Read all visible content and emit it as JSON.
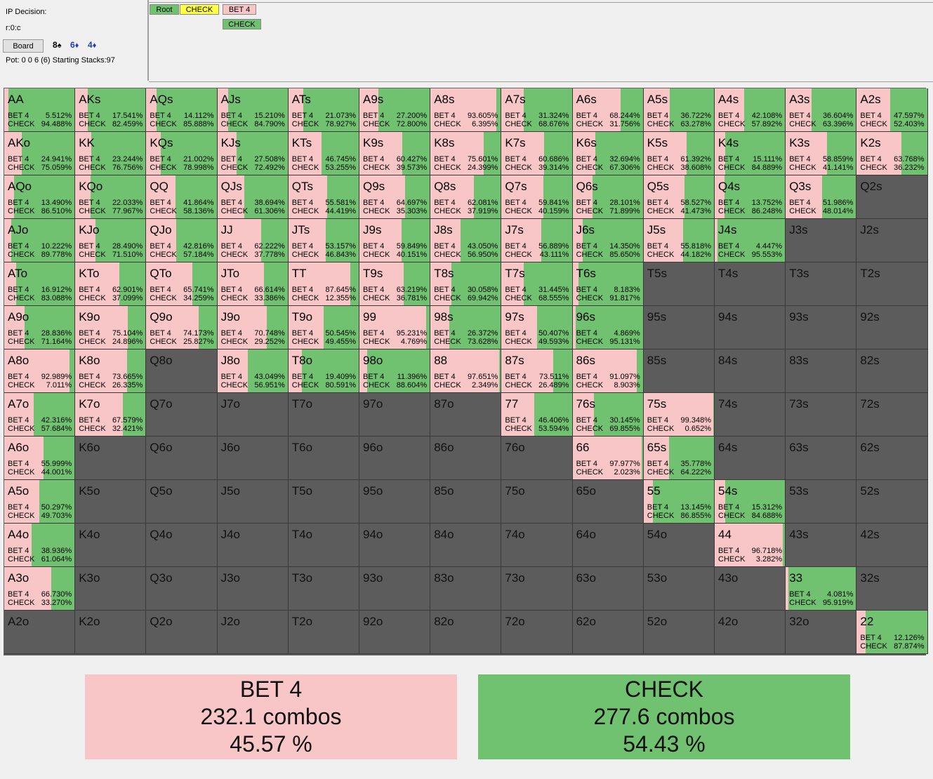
{
  "left_panel": {
    "decision": "IP Decision:",
    "line": "r:0:c",
    "board_button": "Board",
    "board_cards": [
      {
        "rank": "8",
        "suit": "♠",
        "color": "#000000"
      },
      {
        "rank": "6",
        "suit": "♦",
        "color": "#1f3fbf"
      },
      {
        "rank": "4",
        "suit": "♦",
        "color": "#1f3fbf"
      }
    ],
    "pot": "Pot: 0 0 6 (6) Starting Stacks:97"
  },
  "tree": {
    "nodes": [
      {
        "label": "Root",
        "color": "#71c270"
      },
      {
        "label": "CHECK",
        "color": "#ffff40"
      },
      {
        "label": "BET 4",
        "color": "#f8c6c6"
      },
      {
        "label": "CHECK",
        "color": "#71c270"
      }
    ]
  },
  "labels": {
    "bet": "BET 4",
    "check": "CHECK"
  },
  "colors": {
    "bet": "#f8c6c6",
    "check": "#71c270",
    "empty": "#5c5c5c"
  },
  "grid": [
    [
      [
        "AA",
        "5.512%",
        "94.488%"
      ],
      [
        "AKs",
        "17.541%",
        "82.459%"
      ],
      [
        "AQs",
        "14.112%",
        "85.888%"
      ],
      [
        "AJs",
        "15.210%",
        "84.790%"
      ],
      [
        "ATs",
        "21.073%",
        "78.927%"
      ],
      [
        "A9s",
        "27.200%",
        "72.800%"
      ],
      [
        "A8s",
        "93.605%",
        "6.395%"
      ],
      [
        "A7s",
        "31.324%",
        "68.676%"
      ],
      [
        "A6s",
        "68.244%",
        "31.756%"
      ],
      [
        "A5s",
        "36.722%",
        "63.278%"
      ],
      [
        "A4s",
        "42.108%",
        "57.892%"
      ],
      [
        "A3s",
        "36.604%",
        "63.396%"
      ],
      [
        "A2s",
        "47.597%",
        "52.403%"
      ]
    ],
    [
      [
        "AKo",
        "24.941%",
        "75.059%"
      ],
      [
        "KK",
        "23.244%",
        "76.756%"
      ],
      [
        "KQs",
        "21.002%",
        "78.998%"
      ],
      [
        "KJs",
        "27.508%",
        "72.492%"
      ],
      [
        "KTs",
        "46.745%",
        "53.255%"
      ],
      [
        "K9s",
        "60.427%",
        "39.573%"
      ],
      [
        "K8s",
        "75.601%",
        "24.399%"
      ],
      [
        "K7s",
        "60.686%",
        "39.314%"
      ],
      [
        "K6s",
        "32.694%",
        "67.306%"
      ],
      [
        "K5s",
        "61.392%",
        "38.608%"
      ],
      [
        "K4s",
        "15.111%",
        "84.889%"
      ],
      [
        "K3s",
        "58.859%",
        "41.141%"
      ],
      [
        "K2s",
        "63.768%",
        "36.232%"
      ]
    ],
    [
      [
        "AQo",
        "13.490%",
        "86.510%"
      ],
      [
        "KQo",
        "22.033%",
        "77.967%"
      ],
      [
        "QQ",
        "41.864%",
        "58.136%"
      ],
      [
        "QJs",
        "38.694%",
        "61.306%"
      ],
      [
        "QTs",
        "55.581%",
        "44.419%"
      ],
      [
        "Q9s",
        "64.697%",
        "35.303%"
      ],
      [
        "Q8s",
        "62.081%",
        "37.919%"
      ],
      [
        "Q7s",
        "59.841%",
        "40.159%"
      ],
      [
        "Q6s",
        "28.101%",
        "71.899%"
      ],
      [
        "Q5s",
        "58.527%",
        "41.473%"
      ],
      [
        "Q4s",
        "13.752%",
        "86.248%"
      ],
      [
        "Q3s",
        "51.986%",
        "48.014%"
      ],
      [
        "Q2s",
        "",
        ""
      ]
    ],
    [
      [
        "AJo",
        "10.222%",
        "89.778%"
      ],
      [
        "KJo",
        "28.490%",
        "71.510%"
      ],
      [
        "QJo",
        "42.816%",
        "57.184%"
      ],
      [
        "JJ",
        "62.222%",
        "37.778%"
      ],
      [
        "JTs",
        "53.157%",
        "46.843%"
      ],
      [
        "J9s",
        "59.849%",
        "40.151%"
      ],
      [
        "J8s",
        "43.050%",
        "56.950%"
      ],
      [
        "J7s",
        "56.889%",
        "43.111%"
      ],
      [
        "J6s",
        "14.350%",
        "85.650%"
      ],
      [
        "J5s",
        "55.818%",
        "44.182%"
      ],
      [
        "J4s",
        "4.447%",
        "95.553%"
      ],
      [
        "J3s",
        "",
        ""
      ],
      [
        "J2s",
        "",
        ""
      ]
    ],
    [
      [
        "ATo",
        "16.912%",
        "83.088%"
      ],
      [
        "KTo",
        "62.901%",
        "37.099%"
      ],
      [
        "QTo",
        "65.741%",
        "34.259%"
      ],
      [
        "JTo",
        "66.614%",
        "33.386%"
      ],
      [
        "TT",
        "87.645%",
        "12.355%"
      ],
      [
        "T9s",
        "63.219%",
        "36.781%"
      ],
      [
        "T8s",
        "30.058%",
        "69.942%"
      ],
      [
        "T7s",
        "31.445%",
        "68.555%"
      ],
      [
        "T6s",
        "8.183%",
        "91.817%"
      ],
      [
        "T5s",
        "",
        ""
      ],
      [
        "T4s",
        "",
        ""
      ],
      [
        "T3s",
        "",
        ""
      ],
      [
        "T2s",
        "",
        ""
      ]
    ],
    [
      [
        "A9o",
        "28.836%",
        "71.164%"
      ],
      [
        "K9o",
        "75.104%",
        "24.896%"
      ],
      [
        "Q9o",
        "74.173%",
        "25.827%"
      ],
      [
        "J9o",
        "70.748%",
        "29.252%"
      ],
      [
        "T9o",
        "50.545%",
        "49.455%"
      ],
      [
        "99",
        "95.231%",
        "4.769%"
      ],
      [
        "98s",
        "26.372%",
        "73.628%"
      ],
      [
        "97s",
        "50.407%",
        "49.593%"
      ],
      [
        "96s",
        "4.869%",
        "95.131%"
      ],
      [
        "95s",
        "",
        ""
      ],
      [
        "94s",
        "",
        ""
      ],
      [
        "93s",
        "",
        ""
      ],
      [
        "92s",
        "",
        ""
      ]
    ],
    [
      [
        "A8o",
        "92.989%",
        "7.011%"
      ],
      [
        "K8o",
        "73.665%",
        "26.335%"
      ],
      [
        "Q8o",
        "",
        ""
      ],
      [
        "J8o",
        "43.049%",
        "56.951%"
      ],
      [
        "T8o",
        "19.409%",
        "80.591%"
      ],
      [
        "98o",
        "11.396%",
        "88.604%"
      ],
      [
        "88",
        "97.651%",
        "2.349%"
      ],
      [
        "87s",
        "73.511%",
        "26.489%"
      ],
      [
        "86s",
        "91.097%",
        "8.903%"
      ],
      [
        "85s",
        "",
        ""
      ],
      [
        "84s",
        "",
        ""
      ],
      [
        "83s",
        "",
        ""
      ],
      [
        "82s",
        "",
        ""
      ]
    ],
    [
      [
        "A7o",
        "42.316%",
        "57.684%"
      ],
      [
        "K7o",
        "67.579%",
        "32.421%"
      ],
      [
        "Q7o",
        "",
        ""
      ],
      [
        "J7o",
        "",
        ""
      ],
      [
        "T7o",
        "",
        ""
      ],
      [
        "97o",
        "",
        ""
      ],
      [
        "87o",
        "",
        ""
      ],
      [
        "77",
        "46.406%",
        "53.594%"
      ],
      [
        "76s",
        "30.145%",
        "69.855%"
      ],
      [
        "75s",
        "99.348%",
        "0.652%"
      ],
      [
        "74s",
        "",
        ""
      ],
      [
        "73s",
        "",
        ""
      ],
      [
        "72s",
        "",
        ""
      ]
    ],
    [
      [
        "A6o",
        "55.999%",
        "44.001%"
      ],
      [
        "K6o",
        "",
        ""
      ],
      [
        "Q6o",
        "",
        ""
      ],
      [
        "J6o",
        "",
        ""
      ],
      [
        "T6o",
        "",
        ""
      ],
      [
        "96o",
        "",
        ""
      ],
      [
        "86o",
        "",
        ""
      ],
      [
        "76o",
        "",
        ""
      ],
      [
        "66",
        "97.977%",
        "2.023%"
      ],
      [
        "65s",
        "35.778%",
        "64.222%"
      ],
      [
        "64s",
        "",
        ""
      ],
      [
        "63s",
        "",
        ""
      ],
      [
        "62s",
        "",
        ""
      ]
    ],
    [
      [
        "A5o",
        "50.297%",
        "49.703%"
      ],
      [
        "K5o",
        "",
        ""
      ],
      [
        "Q5o",
        "",
        ""
      ],
      [
        "J5o",
        "",
        ""
      ],
      [
        "T5o",
        "",
        ""
      ],
      [
        "95o",
        "",
        ""
      ],
      [
        "85o",
        "",
        ""
      ],
      [
        "75o",
        "",
        ""
      ],
      [
        "65o",
        "",
        ""
      ],
      [
        "55",
        "13.145%",
        "86.855%"
      ],
      [
        "54s",
        "15.312%",
        "84.688%"
      ],
      [
        "53s",
        "",
        ""
      ],
      [
        "52s",
        "",
        ""
      ]
    ],
    [
      [
        "A4o",
        "38.936%",
        "61.064%"
      ],
      [
        "K4o",
        "",
        ""
      ],
      [
        "Q4o",
        "",
        ""
      ],
      [
        "J4o",
        "",
        ""
      ],
      [
        "T4o",
        "",
        ""
      ],
      [
        "94o",
        "",
        ""
      ],
      [
        "84o",
        "",
        ""
      ],
      [
        "74o",
        "",
        ""
      ],
      [
        "64o",
        "",
        ""
      ],
      [
        "54o",
        "",
        ""
      ],
      [
        "44",
        "96.718%",
        "3.282%"
      ],
      [
        "43s",
        "",
        ""
      ],
      [
        "42s",
        "",
        ""
      ]
    ],
    [
      [
        "A3o",
        "66.730%",
        "33.270%"
      ],
      [
        "K3o",
        "",
        ""
      ],
      [
        "Q3o",
        "",
        ""
      ],
      [
        "J3o",
        "",
        ""
      ],
      [
        "T3o",
        "",
        ""
      ],
      [
        "93o",
        "",
        ""
      ],
      [
        "83o",
        "",
        ""
      ],
      [
        "73o",
        "",
        ""
      ],
      [
        "63o",
        "",
        ""
      ],
      [
        "53o",
        "",
        ""
      ],
      [
        "43o",
        "",
        ""
      ],
      [
        "33",
        "4.081%",
        "95.919%"
      ],
      [
        "32s",
        "",
        ""
      ]
    ],
    [
      [
        "A2o",
        "",
        ""
      ],
      [
        "K2o",
        "",
        ""
      ],
      [
        "Q2o",
        "",
        ""
      ],
      [
        "J2o",
        "",
        ""
      ],
      [
        "T2o",
        "",
        ""
      ],
      [
        "92o",
        "",
        ""
      ],
      [
        "82o",
        "",
        ""
      ],
      [
        "72o",
        "",
        ""
      ],
      [
        "62o",
        "",
        ""
      ],
      [
        "52o",
        "",
        ""
      ],
      [
        "42o",
        "",
        ""
      ],
      [
        "32o",
        "",
        ""
      ],
      [
        "22",
        "12.126%",
        "87.874%"
      ]
    ]
  ],
  "summary": {
    "bet": {
      "title": "BET 4",
      "combos": "232.1 combos",
      "percent": "45.57 %"
    },
    "check": {
      "title": "CHECK",
      "combos": "277.6 combos",
      "percent": "54.43 %"
    }
  }
}
